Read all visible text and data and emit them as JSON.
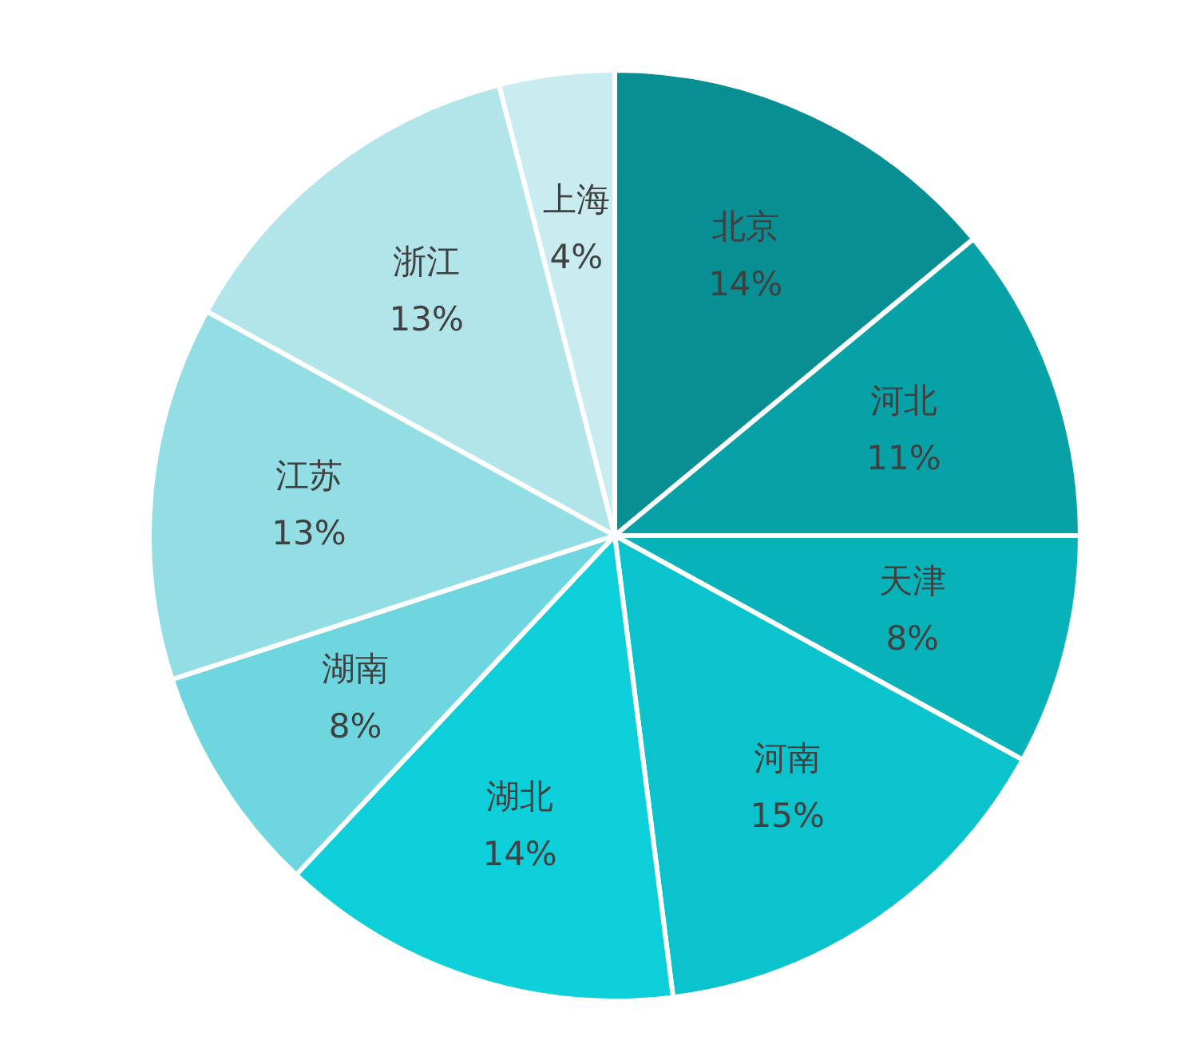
{
  "chart_data": {
    "type": "pie",
    "categories": [
      "北京",
      "河北",
      "天津",
      "河南",
      "湖北",
      "湖南",
      "江苏",
      "浙江",
      "上海"
    ],
    "values": [
      14,
      11,
      8,
      15,
      14,
      8,
      13,
      13,
      4
    ],
    "value_labels": [
      "14%",
      "11%",
      "8%",
      "15%",
      "14%",
      "8%",
      "13%",
      "13%",
      "4%"
    ],
    "colors": [
      "#078f94",
      "#06a2a8",
      "#08b2b9",
      "#0bc3cc",
      "#0ccfd9",
      "#6dd6de",
      "#93dee4",
      "#b1e5ea",
      "#c8ecef"
    ],
    "legend": false
  }
}
